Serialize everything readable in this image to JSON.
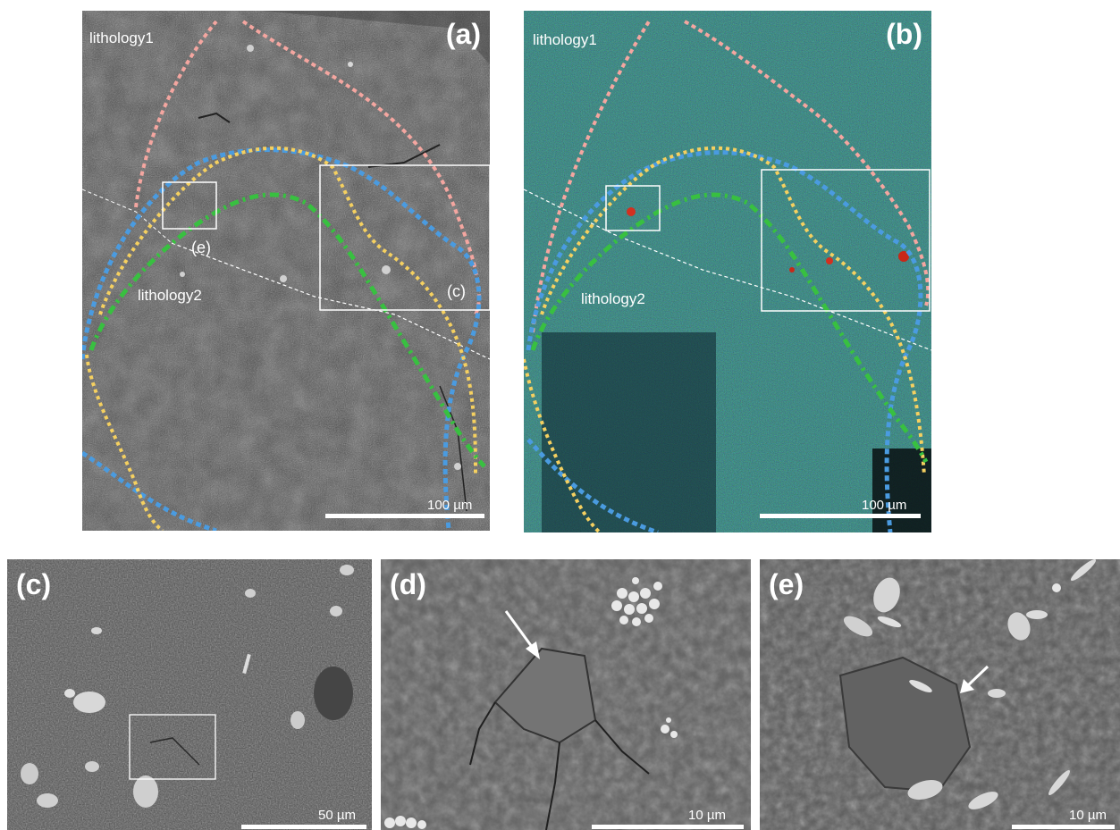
{
  "panels": {
    "a": {
      "label": "(a)",
      "lithology1": "lithology1",
      "lithology2": "lithology2",
      "box_c_label": "(c)",
      "box_e_label": "(e)",
      "scalebar": "100 µm"
    },
    "b": {
      "label": "(b)",
      "lithology1": "lithology1",
      "lithology2": "lithology2",
      "scalebar": "100 µm"
    },
    "c": {
      "label": "(c)",
      "scalebar": "50 µm"
    },
    "d": {
      "label": "(d)",
      "scalebar": "10 µm"
    },
    "e": {
      "label": "(e)",
      "scalebar": "10 µm"
    }
  },
  "boundary_colors": {
    "pink": "#f4a6a0",
    "blue": "#4a9be0",
    "yellow": "#f5d060",
    "green": "#38c040",
    "white": "#ffffff"
  }
}
